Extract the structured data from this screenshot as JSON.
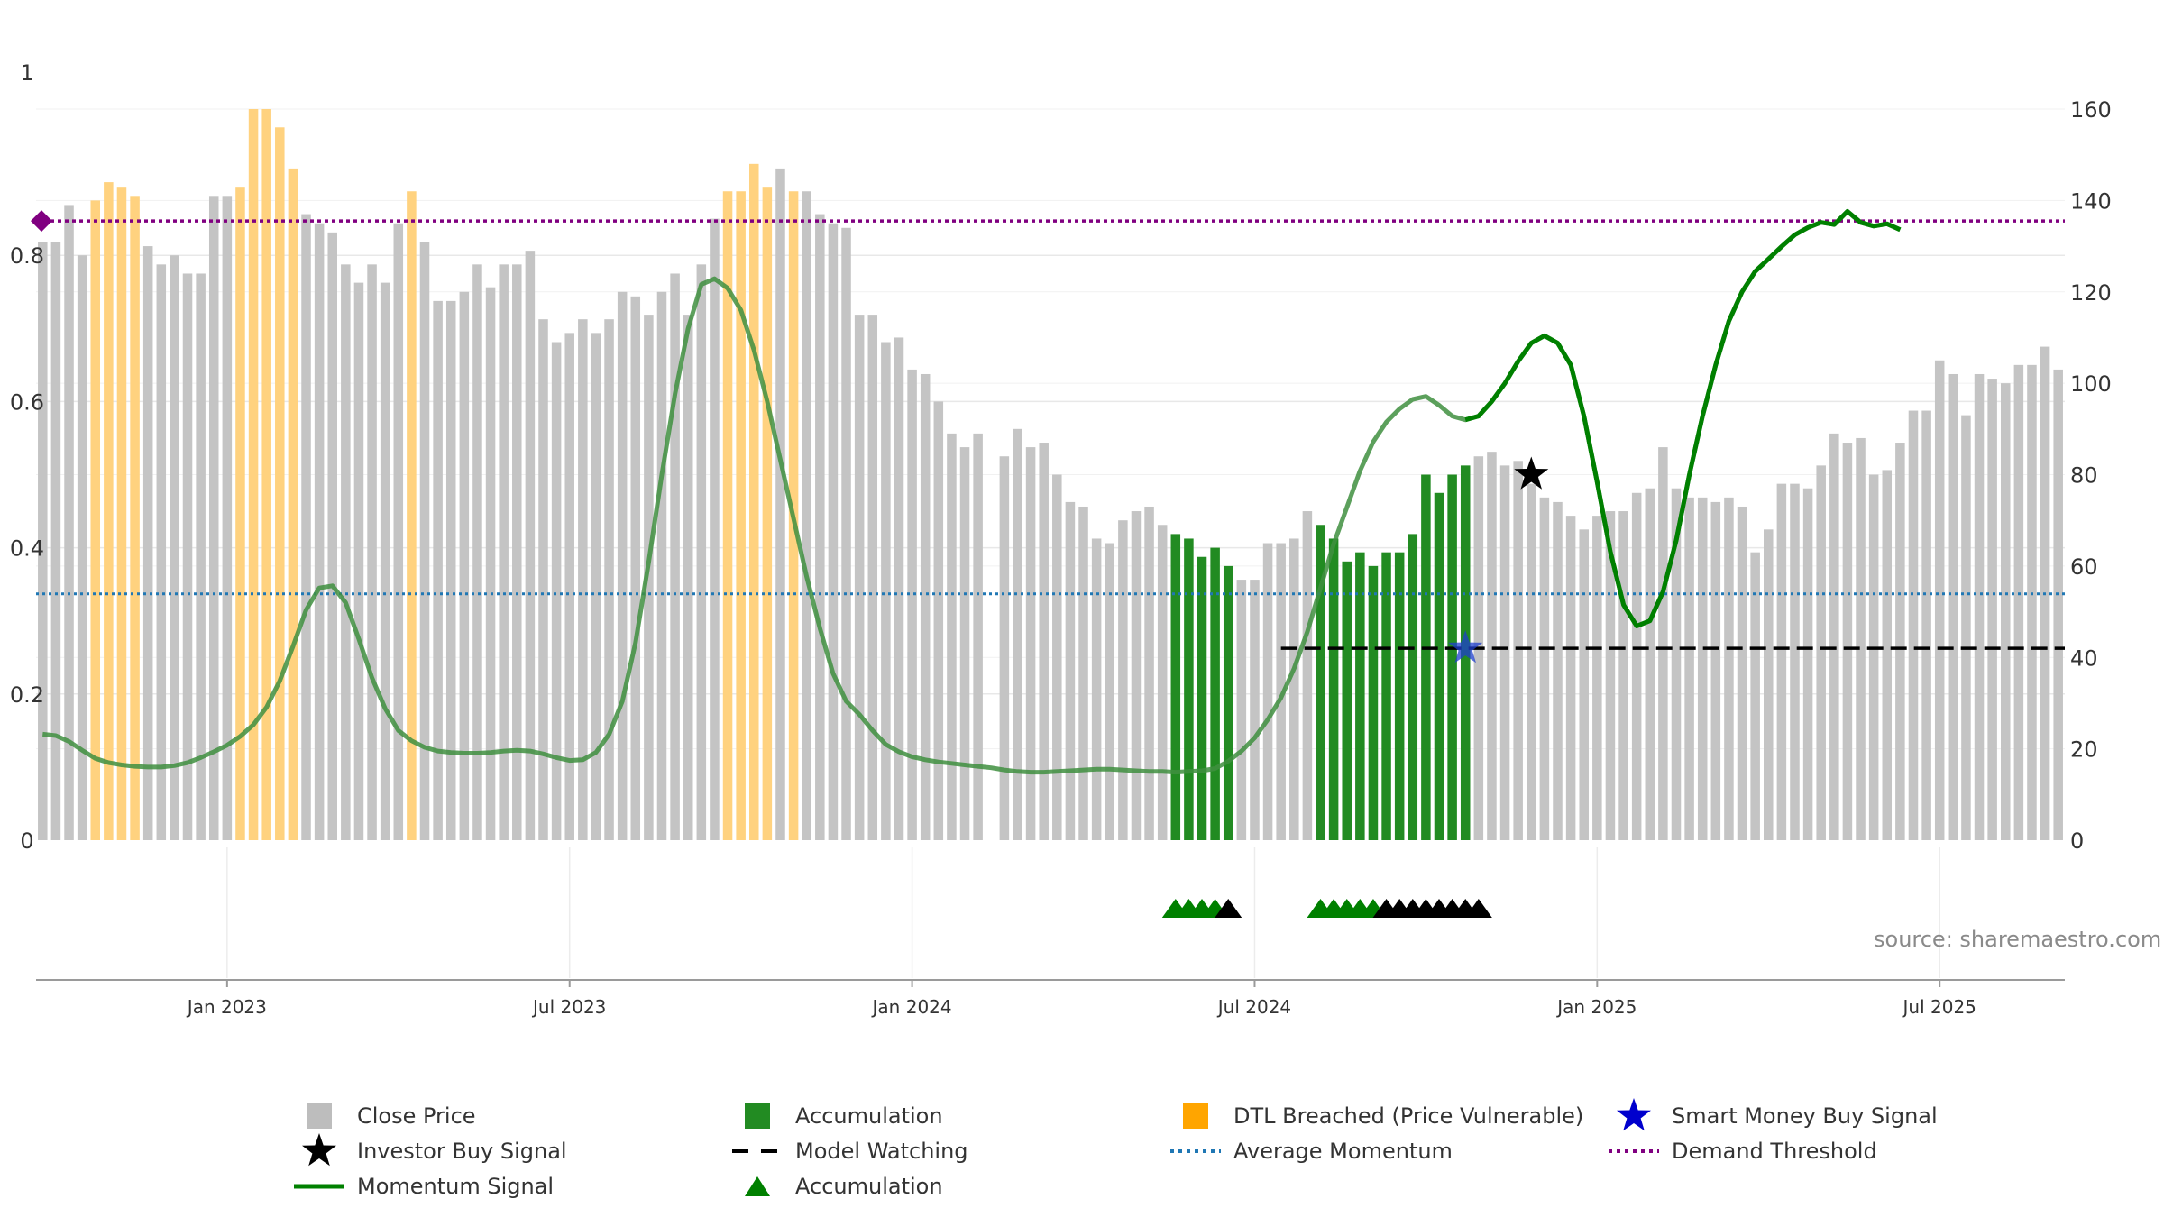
{
  "chart_data": {
    "type": "bar",
    "title": "",
    "source": "source: sharemaestro.com",
    "x_ticks": [
      {
        "label": "Jan 2023",
        "week": 14
      },
      {
        "label": "Jul 2023",
        "week": 40
      },
      {
        "label": "Jan 2024",
        "week": 66
      },
      {
        "label": "Jul 2024",
        "week": 92
      },
      {
        "label": "Jan 2025",
        "week": 118
      },
      {
        "label": "Jul 2025",
        "week": 144
      }
    ],
    "left_axis": {
      "ticks": [
        "0",
        "0.2",
        "0.4",
        "0.6",
        "0.8",
        "1"
      ],
      "range": [
        0,
        1
      ]
    },
    "right_axis": {
      "ticks": [
        "0",
        "20",
        "40",
        "60",
        "80",
        "100",
        "120",
        "140",
        "160"
      ],
      "range": [
        0,
        160
      ]
    },
    "series": [
      {
        "name": "Close Price",
        "axis": "right",
        "values": [
          131,
          131,
          139,
          128,
          140,
          144,
          143,
          141,
          130,
          126,
          128,
          124,
          124,
          141,
          141,
          143,
          160,
          160,
          156,
          147,
          137,
          135,
          133,
          126,
          122,
          126,
          122,
          135,
          142,
          131,
          118,
          118,
          120,
          126,
          121,
          126,
          126,
          129,
          114,
          109,
          111,
          114,
          111,
          114,
          120,
          119,
          115,
          120,
          124,
          115,
          126,
          136,
          142,
          142,
          148,
          143,
          147,
          142,
          142,
          137,
          135,
          134,
          115,
          115,
          109,
          110,
          103,
          102,
          96,
          89,
          86,
          89,
          0,
          84,
          90,
          86,
          87,
          80,
          74,
          73,
          66,
          65,
          70,
          72,
          73,
          69,
          67,
          66,
          62,
          64,
          60,
          57,
          57,
          65,
          65,
          66,
          72,
          69,
          66,
          61,
          63,
          60,
          63,
          63,
          67,
          80,
          76,
          80,
          82,
          84,
          85,
          82,
          83,
          78,
          75,
          74,
          71,
          68,
          71,
          72,
          72,
          76,
          77,
          86,
          77,
          75,
          75,
          74,
          75,
          73,
          63,
          68,
          78,
          78,
          77,
          82,
          89,
          87,
          88,
          80,
          81,
          87,
          94,
          94,
          105,
          102,
          93,
          102,
          101,
          100,
          104,
          104,
          108,
          103
        ],
        "segments": {
          "dtl": [
            [
              4,
              7
            ],
            [
              15,
              19
            ],
            [
              28,
              28
            ],
            [
              52,
              55
            ],
            [
              57,
              57
            ]
          ],
          "accumulation": [
            [
              86,
              90
            ],
            [
              97,
              108
            ]
          ]
        }
      },
      {
        "name": "Momentum Signal",
        "axis": "left",
        "values": [
          0.145,
          0.143,
          0.135,
          0.123,
          0.112,
          0.106,
          0.103,
          0.101,
          0.1,
          0.1,
          0.102,
          0.106,
          0.113,
          0.121,
          0.13,
          0.142,
          0.158,
          0.182,
          0.218,
          0.265,
          0.315,
          0.345,
          0.348,
          0.325,
          0.275,
          0.222,
          0.18,
          0.15,
          0.136,
          0.127,
          0.122,
          0.12,
          0.119,
          0.119,
          0.12,
          0.122,
          0.123,
          0.122,
          0.118,
          0.113,
          0.109,
          0.11,
          0.12,
          0.145,
          0.19,
          0.27,
          0.38,
          0.5,
          0.61,
          0.7,
          0.76,
          0.768,
          0.755,
          0.725,
          0.67,
          0.6,
          0.52,
          0.44,
          0.36,
          0.29,
          0.228,
          0.19,
          0.172,
          0.15,
          0.131,
          0.121,
          0.114,
          0.11,
          0.107,
          0.105,
          0.103,
          0.101,
          0.099,
          0.096,
          0.094,
          0.093,
          0.093,
          0.094,
          0.095,
          0.096,
          0.097,
          0.097,
          0.096,
          0.095,
          0.094,
          0.094,
          0.093,
          0.094,
          0.095,
          0.098,
          0.108,
          0.122,
          0.14,
          0.165,
          0.195,
          0.235,
          0.285,
          0.345,
          0.405,
          0.455,
          0.505,
          0.545,
          0.572,
          0.59,
          0.603,
          0.607,
          0.595,
          0.58,
          0.575,
          0.58,
          0.6,
          0.625,
          0.655,
          0.68,
          0.69,
          0.68,
          0.65,
          0.58,
          0.49,
          0.395,
          0.322,
          0.293,
          0.3,
          0.34,
          0.41,
          0.5,
          0.58,
          0.65,
          0.71,
          0.75,
          0.778,
          0.795,
          0.812,
          0.828,
          0.838,
          0.845,
          0.842,
          0.86,
          0.845,
          0.84,
          0.843,
          0.835
        ]
      },
      {
        "name": "Average Momentum",
        "axis": "left",
        "value": 0.337
      },
      {
        "name": "Demand Threshold",
        "axis": "left",
        "value": 0.847
      },
      {
        "name": "Model Watching",
        "axis": "right",
        "value": 42.0,
        "from_week": 99
      },
      {
        "name": "Investor Buy Signal",
        "axis": "left",
        "points": [
          {
            "week": 113,
            "value": 0.5
          }
        ]
      },
      {
        "name": "Smart Money Buy Signal",
        "axis": "right",
        "points": [
          {
            "week": 108,
            "value": 42.0
          }
        ]
      },
      {
        "name": "Accumulation",
        "kind": "triangle-markers",
        "green_weeks": [
          86,
          87,
          88,
          89,
          97,
          98,
          99,
          100,
          101
        ],
        "black_weeks": [
          90,
          102,
          103,
          104,
          105,
          106,
          107,
          108,
          109
        ]
      }
    ],
    "legend": [
      {
        "label": "Close Price",
        "symbol": "square",
        "color": "#bdbdbd"
      },
      {
        "label": "Accumulation",
        "symbol": "square",
        "color": "#228b22"
      },
      {
        "label": "DTL Breached (Price Vulnerable)",
        "symbol": "square",
        "color": "#ffa500"
      },
      {
        "label": "Smart Money Buy Signal",
        "symbol": "star",
        "color": "#0000cd"
      },
      {
        "label": "Investor Buy Signal",
        "symbol": "star",
        "color": "#000000"
      },
      {
        "label": "Model Watching",
        "symbol": "dash",
        "color": "#000000"
      },
      {
        "label": "Average Momentum",
        "symbol": "dot-line",
        "color": "#1f77b4"
      },
      {
        "label": "Demand Threshold",
        "symbol": "dot-line",
        "color": "#800080"
      },
      {
        "label": "Momentum Signal",
        "symbol": "line",
        "color": "#008000"
      },
      {
        "label": "Accumulation",
        "symbol": "triangle",
        "color": "#008000"
      }
    ],
    "legend_placement": "bottom-center",
    "grid": true
  },
  "colors": {
    "price": "#c4c4c4",
    "price_faded": "#d9d9d9",
    "dtl": "#ffd27f",
    "accumulation": "#228b22",
    "momentum": "#008000",
    "momentum_faded": "#3f8f3f",
    "average": "#1f77b4",
    "threshold": "#800080",
    "watching": "#000000",
    "smart_star": "#1f3fcd",
    "investor_star": "#000000",
    "triangle_green": "#008000",
    "triangle_black": "#000000",
    "grid": "#e8e8e8",
    "axis": "#9a9a9a"
  }
}
